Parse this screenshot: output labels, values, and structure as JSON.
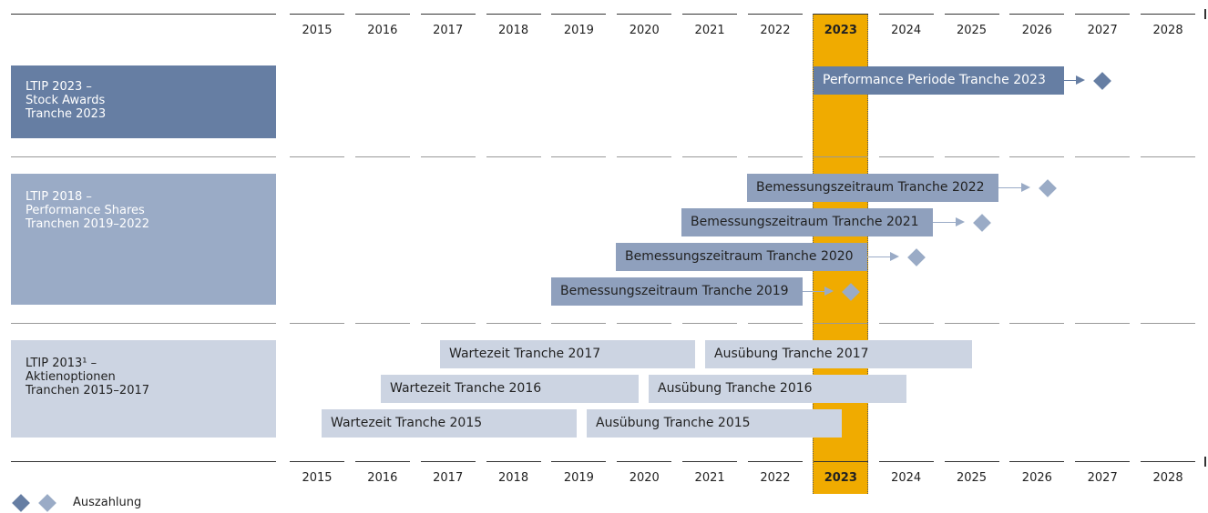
{
  "years": [
    "2015",
    "2016",
    "2017",
    "2018",
    "2019",
    "2020",
    "2021",
    "2022",
    "2023",
    "2024",
    "2025",
    "2026",
    "2027",
    "2028"
  ],
  "groups": [
    {
      "label": [
        "LTIP 2023 –",
        "Stock Awards",
        "Tranche 2023"
      ],
      "bars": [
        "Performance Periode Tranche 2023"
      ]
    },
    {
      "label": [
        "LTIP 2018 –",
        "Performance Shares",
        "Tranchen 2019–2022"
      ],
      "bars": [
        "Bemessungszeitraum Tranche 2022",
        "Bemessungszeitraum Tranche 2021",
        "Bemessungszeitraum Tranche 2020",
        "Bemessungszeitraum Tranche 2019"
      ]
    },
    {
      "label": [
        "LTIP 2013¹ –",
        "Aktienoptionen",
        "Tranchen 2015–2017"
      ],
      "bars": [
        "Wartezeit Tranche 2017",
        "Ausübung Tranche 2017",
        "Wartezeit Tranche 2016",
        "Ausübung Tranche 2016",
        "Wartezeit Tranche 2015",
        "Ausübung Tranche 2015"
      ]
    }
  ],
  "legend": "Auszahlung"
}
